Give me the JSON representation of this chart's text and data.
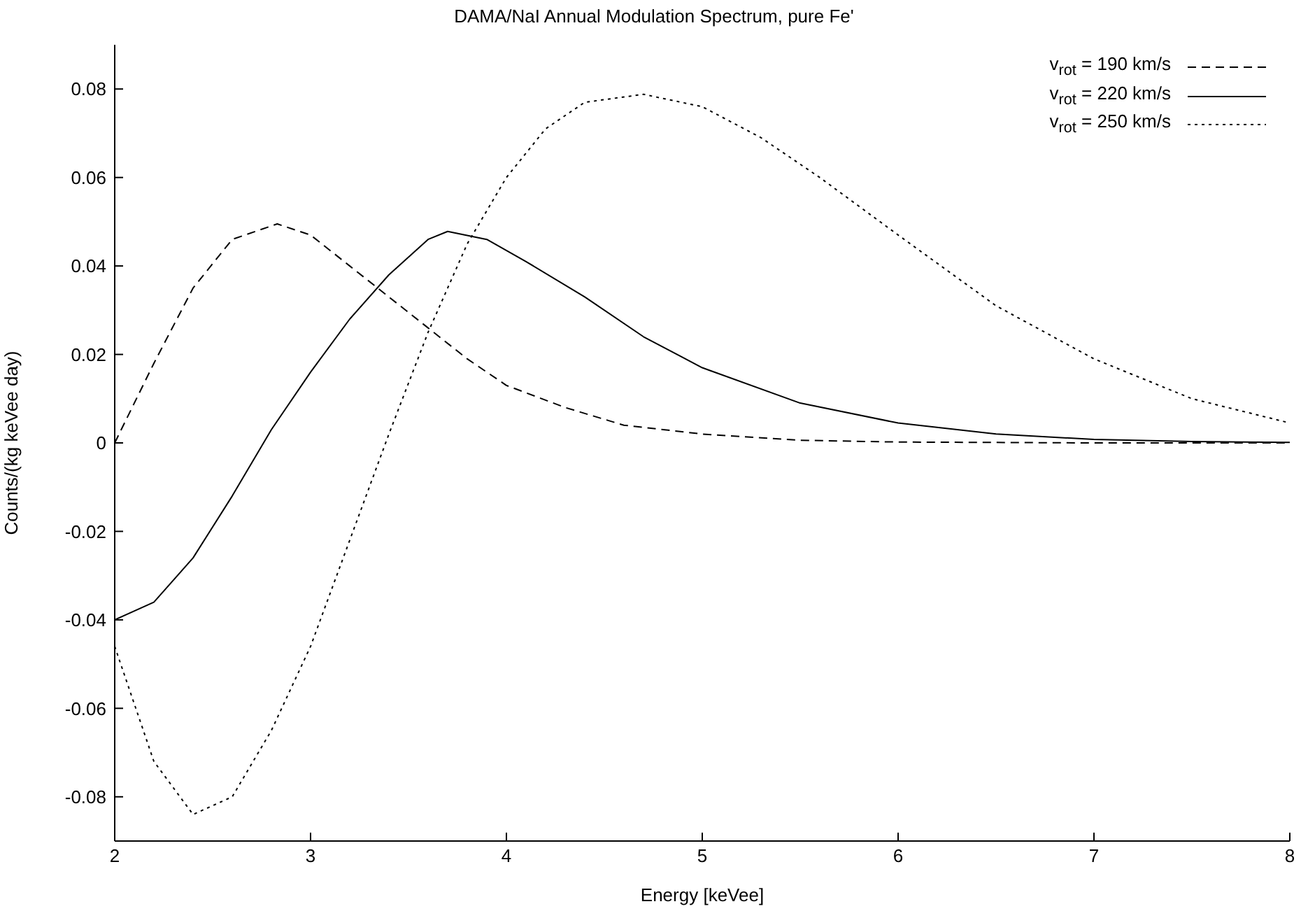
{
  "chart_data": {
    "type": "line",
    "title": "DAMA/NaI Annual Modulation Spectrum, pure Fe'",
    "xlabel": "Energy [keVee]",
    "ylabel": "Counts/(kg keVee day)",
    "xlim": [
      2,
      8
    ],
    "xticks": [
      2,
      3,
      4,
      5,
      6,
      7,
      8
    ],
    "ylim": [
      -0.09,
      0.09
    ],
    "yticks": [
      -0.08,
      -0.06,
      -0.04,
      -0.02,
      0,
      0.02,
      0.04,
      0.06,
      0.08
    ],
    "grid": false,
    "legend": "top right",
    "marker": "none",
    "series": [
      {
        "name": "v$_{rot}$ = 190 km/s",
        "color": "#000000",
        "line_style": "dashed",
        "x": [
          2,
          2.2,
          2.4,
          2.6,
          2.83,
          3.0,
          3.2,
          3.4,
          3.6,
          3.8,
          4.0,
          4.3,
          4.6,
          5.0,
          5.5,
          6.0,
          7.0,
          8.0
        ],
        "values": [
          0,
          0.018,
          0.035,
          0.046,
          0.0495,
          0.047,
          0.04,
          0.033,
          0.026,
          0.019,
          0.013,
          0.008,
          0.004,
          0.002,
          0.0006,
          0.0002,
          0,
          0
        ]
      },
      {
        "name": "v$_{rot}$ = 220 km/s",
        "color": "#000000",
        "line_style": "solid",
        "x": [
          2,
          2.2,
          2.4,
          2.6,
          2.8,
          3.0,
          3.2,
          3.4,
          3.6,
          3.7,
          3.9,
          4.1,
          4.4,
          4.7,
          5.0,
          5.5,
          6.0,
          6.5,
          7.0,
          7.5,
          8.0
        ],
        "values": [
          -0.04,
          -0.036,
          -0.026,
          -0.012,
          0.003,
          0.016,
          0.028,
          0.038,
          0.046,
          0.0478,
          0.046,
          0.041,
          0.033,
          0.024,
          0.017,
          0.009,
          0.0045,
          0.002,
          0.0008,
          0.0003,
          0.0001
        ]
      },
      {
        "name": "v$_{rot}$ = 250 km/s",
        "color": "#000000",
        "line_style": "dotted",
        "x": [
          2,
          2.2,
          2.4,
          2.6,
          2.8,
          3.0,
          3.2,
          3.4,
          3.6,
          3.8,
          4.0,
          4.2,
          4.4,
          4.7,
          5.0,
          5.3,
          5.6,
          6.0,
          6.5,
          7.0,
          7.5,
          8.0
        ],
        "values": [
          -0.046,
          -0.072,
          -0.084,
          -0.08,
          -0.065,
          -0.046,
          -0.022,
          0.002,
          0.025,
          0.045,
          0.06,
          0.071,
          0.077,
          0.0788,
          0.076,
          0.069,
          0.06,
          0.047,
          0.031,
          0.019,
          0.01,
          0.0045
        ]
      }
    ]
  }
}
